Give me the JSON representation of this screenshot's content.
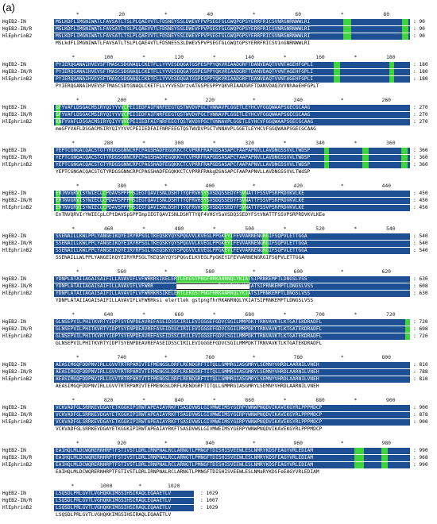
{
  "panel_label": "(a)",
  "ruler_marker": "*",
  "blocks": [
    {
      "ruler": [
        "20",
        "40",
        "60",
        "80"
      ],
      "rows": [
        {
          "name": "HgEB2-IN",
          "seq": "MSLKDFLIMGNIWATLFAVSATLTSLPLQAEVVTLFDSNEYSSLDWEVFPVPSEGTGLGWQPGPSYERRFRICSVNRGNRNWWLRI",
          "count": "90"
        },
        {
          "name": "HgEB2-IN/R",
          "seq": "MSLKDFLIMGNIWATLFAVSATLTSLPLQAEVVTLFDSNEYSSLDWEVFPVPSEGTGLGWQPGPSYERRFRICSVNRGNRNWWLRI",
          "count": "90"
        },
        {
          "name": "HlEphrinB2",
          "seq": "MSLKDFLIMGNIWATLFAVSATLTSLPLQAEVVTLFDSNEYSSLDWEVFPVPSEGTGLGWQPGPSYERRFRICSVNRGNRNWWLRI",
          "count": "90"
        },
        {
          "name": "",
          "seq": "MSLkdFLIMGNIWATLFAVSATLTSLPLQAE4VTLFDSNE5S3LDWEV5PVPSEGTGLGWQtGPSYERRFRICSV1nGNRNWWLRI",
          "count": ""
        }
      ]
    },
    {
      "ruler": [
        "100",
        "120",
        "140",
        "160",
        "180"
      ],
      "rows": [
        {
          "name": "HgEB2-IN",
          "seq": "PYIERQGANAIHVEVSFTMASCSDGNAQLCKETFLLYYVESDQGATGSPESPPYQKVRIAADGRFTDANVDAQTVVNTAGEHFGPLI",
          "count": "180"
        },
        {
          "name": "HgEB2-IN/R",
          "seq": "PYIERQGANAIHVEVSFTMASCSDGNAQLCKETFLLYYVESDQGATGSPESPPYQKVRIAADGRFTDANVDAQTVVNTAGEHFGPLI",
          "count": "180"
        },
        {
          "name": "HlEphrinB2",
          "seq": "PYIERQGANAIHVEVSFTMASCSDGNAQLCKETFLLYYVESDQGATGSPESPPYQKVRIAADGRFTDANVDAQTVVNTAGEHFGPLI",
          "count": "180"
        },
        {
          "name": "",
          "seq": "PYIERQGANAIHVEVSFTMASCSDtGNAQLCKETFLLYYVESDrzvATGSPESPPYQKVRIAADGRFTDANVDAQ3VVNhAeEHFGPLT",
          "count": ""
        }
      ]
    },
    {
      "ruler": [
        "200",
        "220",
        "240",
        "260"
      ],
      "rows": [
        {
          "name": "HgEB2-IN",
          "seq": "GFYVAFLDSGACMSIRYQIYYVVCPEIIEDFAIFNRFEEGTQSTWVDVPGCTVNNAVPLGGETLEYHCVFGGQWAAPSGECGCAAG",
          "count": "270"
        },
        {
          "name": "HgEB2-IN/R",
          "seq": "GFYVAFLDSGACMSIRYQIYYVVCPEIIEDFAIFNRFEEGTQSTWVDVPGCTVNNAVPLGGETLEYHCVFGGQWAAPSGECGCAAG",
          "count": "270"
        },
        {
          "name": "HlEphrinB2",
          "seq": "KNFYVAFLDSGACMSIRYQIYYVVCPEIIEDFAIFNRFEEGTQSTWVDVPGCTVNNAVPLGGETLEYHCVFGGQWAAPSGECGCAAG",
          "count": "270"
        },
        {
          "name": "",
          "seq": "meGFYVAFLDSGACMSIRYQIYYVVCPEIIEDFAIFNRFEEGTQSTWVDVPGCTVNNAVPLGGETLEYHCVFGGQWAAPSGECGCAAG",
          "count": ""
        }
      ]
    },
    {
      "ruler": [
        "280",
        "300",
        "320",
        "340",
        "360"
      ],
      "rows": [
        {
          "name": "HgEB2-IN",
          "seq": "YEPTCGNGACQACSTGTYRDGSGNNCRPCPAGSHADFEGQKKCTCVPRRFRAPGDSASAPCFAAPAPNVLLAVDNGSSVVLTWDSP",
          "count": "360"
        },
        {
          "name": "HgEB2-IN/R",
          "seq": "YEPTCGNGACQACSTGTYRDGSGNNCRPCPAGSHADFEGQKKCTCVPRRFRAPGDSASAPCFAAPAPNVLLAVDNGSSVVLTWDSP",
          "count": "360"
        },
        {
          "name": "HlEphrinB2",
          "seq": "YEPTCGNGACQACSTGTYRDGSGNNCRPCPAGSHADFEGQKKCTCVPRRFRAPGDSASAPCFAAPAPNVLLAVDNGSSVVLTWDSP",
          "count": "360"
        },
        {
          "name": "",
          "seq": "YEPTCGNGACQACSTGTYRDGSGNNCRPCPAGSHADFEGQKKCTCVPRRFRAkgDSASAPCFAAPAPNVLLAVDNGSSVVLTWdSP",
          "count": ""
        }
      ]
    },
    {
      "ruler": [
        "380",
        "400",
        "420",
        "440"
      ],
      "rows": [
        {
          "name": "HgEB2-IN",
          "seq": "ERTNVGRVISYWIECLCPDAVSPPPMSIEGTQAVISNLDSHTTYQFRVHSYSVSDQSSEDYFSVNATTFSSVPSRPRDVKVLKE",
          "count": "450"
        },
        {
          "name": "HgEB2-IN/R",
          "seq": "ERTNVGRVISYWIECLCPDAVSPPPMSIEGTQAVISNLDSHTTYQFRVHSYSVSDQSSEDYFSVNATTFSSVPSRPRDVKVLKE",
          "count": "450"
        },
        {
          "name": "HlEphrinB2",
          "seq": "ERTNVGRVISYWIECLCPDAVSPPPMSIEGTQAVISNLDSHTTYQFRVHSYSVSDQSSEDYFSVNATTFSSVPSRPRDVKVLKE",
          "count": "450"
        },
        {
          "name": "",
          "seq": "EnTNVQRVIrYWIECpLCPtDAVSpSPPImpIEGTQAVISNLDSHTTYQF4VHSYSaVSDQSSEDYFStVNATTFSSVPSRPRDVKVLKEe",
          "count": ""
        }
      ]
    },
    {
      "ruler": [
        "460",
        "480",
        "500",
        "520",
        "540"
      ],
      "rows": [
        {
          "name": "HgEB2-IN",
          "seq": "SSENAILLKWLPPLYANGEIKQYEIRYRPSGLTKEQSKYQYSPQGVVLKVEGLPPGKEYIFEVVARNENGRGIFSQPVLETTGGA",
          "count": "540"
        },
        {
          "name": "HgEB2-IN/R",
          "seq": "SSENAILLKWLPPLYANGEIKQYEIRYRPSGLTKEQSKYQYSPQGVVLKVEGLPPGKEYIFEVVARNENGRGIFSQPVLETTGGA",
          "count": "540"
        },
        {
          "name": "HlEphrinB2",
          "seq": "SSENAILLKWLPPLYANGEIKQYEIRYRPSGLTKEQSKYQYSPQGVVLKVEGLPPGKEYIFEVVARNENGRGIFSQPVLETTGGA",
          "count": "540"
        },
        {
          "name": "",
          "seq": "SSENAILLWLPPLYANGEIKQYEIRYRPSGLTKEQSKYQYSPQGvELKVEGLPpGKEYIFEVVARNENGRGIFSQPVLETTGGA",
          "count": ""
        }
      ]
    },
    {
      "ruler": [
        "560",
        "580",
        "600",
        "620"
      ],
      "rows": [
        {
          "name": "HgEB2-IN",
          "seq": "YDNPLATAIIAGAISAIFILLAVAVIFLVFWRKRSIKELERTLEKGSTPNGFHRKANRNQLYKIATSIPRNKEMPTLDNGSLVSS",
          "count": "630"
        },
        {
          "name": "HgEB2-IN/R",
          "seq": "YDNPLATAIIAGAISAIFILLAVAVIFLVFWRR                      RKANRNQLYKIATSIPRNKEMPTLDNGSLVSS",
          "count": "608"
        },
        {
          "name": "HlEphrinB2",
          "seq": "YDNPLATAIIAGAISAIFILLAVAVIFLVFWRRKRSIKELERTLEKGSTPNGFHRKANRNQLYKIATSIPRNKEMPTLDNGSLVSS",
          "count": "630"
        },
        {
          "name": "",
          "seq": "YDNPLATAIIAGAISAIFILLAVAVIFLVFWRRksi elertlek gstpngfhrRKANRNQLYKIATSIPRNKEMPTLDNGSLVSS",
          "count": ""
        }
      ]
    },
    {
      "ruler": [
        "640",
        "660",
        "680",
        "700",
        "720"
      ],
      "rows": [
        {
          "name": "HgEB2-IN",
          "seq": "GLNSEPVILPHITKVRTYIDPTSYENPDEAVREFASEIDSSCIRILEVIGGGEFGDVCSGILMMPDKTTRNVAVKTLKTGATEKDRADFL",
          "count": "720"
        },
        {
          "name": "HgEB2-IN/R",
          "seq": "GLNSEPVILPHITKVRTYIDPTSYENPDEAVREFASEIDSSCIRILEVIGGGEFGDVCSGILMMPDKTTRNVAVKTLKTGATEKDRADFL",
          "count": "698"
        },
        {
          "name": "HlEphrinB2",
          "seq": "GLNSEPVILPHITKVRTYIDPTSYENPDEAVREFASEIDSSCIRILEVIGGGEFGDVCSGILMMPDKTTRNVAVKTLKTGATEKDRADFL",
          "count": "720"
        },
        {
          "name": "",
          "seq": "GLNSEPVILPHITKVRTYIDPTSYENPDEAVREFASEIDSSCIRILEVIGGGEFGDVCSGILMMPDKTTRNVAVKTLKTGATEKDRADFL",
          "count": ""
        }
      ]
    },
    {
      "ruler": [
        "740",
        "760",
        "780",
        "800"
      ],
      "rows": [
        {
          "name": "HgEB2-IN",
          "seq": "AEASIMGQFDDPNVIRLLGVVTRTRPAMIVTEFMENGSLDRFLRENDGRFTITQLLGMMRGIASGMRYLSEMNYVHRDLAARNILVNEH",
          "count": "810"
        },
        {
          "name": "HgEB2-IN/R",
          "seq": "AEASIMGQFDDPNVIRLLGVVTRTRPAMIVTEFMENGSLDRFLRENDGRFTITQLLGMMRGIASGMRYLSEMNYVHRDLAARNILVNEH",
          "count": "788"
        },
        {
          "name": "HlEphrinB2",
          "seq": "AEASIMGQFDDPNVIRLLGVVTRTRPAMIVTEFMENGSLDRFLRENDGRFTITQLLGMMRGIASGMRYLSEMNYVHRDLAARNILVNEH",
          "count": "810"
        },
        {
          "name": "",
          "seq": "AEASIMGQFDDPNVIRLLGVVTRTRPAMIVTEFMENGSLDRFLRENDGRFTITQLLGMMRGIASGMRYLSEMNYVHRDLAARNILVNEH",
          "count": ""
        }
      ]
    },
    {
      "ruler": [
        "820",
        "840",
        "860",
        "880",
        "900"
      ],
      "rows": [
        {
          "name": "HgEB2-IN",
          "seq": "VCKVADFGLSRRKEVDGAYETKGGKIPIRWTAPEAIAYRKFTSASDVWSLGIVMWEIMSYGERPYWNWPNQDVIKAVEKGYRLPPPMDCP",
          "count": "900"
        },
        {
          "name": "HgEB2-IN/R",
          "seq": "VCKVADFGLSRRKEVDGAYETKGGKIPIRWTAPEAIAYRKFTSASDVWSLGIVMWEIMSYGERPYWNWPNQDVIKAVEKGYRLPPPMDCP",
          "count": "878"
        },
        {
          "name": "HlEphrinB2",
          "seq": "VCKVADFGLSRRKEVDGAYETKGGKIPIRWTAPEAIAYRKFTSASDVWSLGIVMWEIMSYGERPYWNWPNQDVIKAVEKGYRLPPPMDCP",
          "count": "900"
        },
        {
          "name": "",
          "seq": "VCKVADFGLSRRKEVDGAYETKGGKIPIRWTAPEAIAYRKFTSASDVWSLGIVMWEIMSYGERPYWNWPNQDVIKAVEKGYRLPPPMDCP",
          "count": ""
        }
      ]
    },
    {
      "ruler": [
        "920",
        "940",
        "960",
        "980"
      ],
      "rows": [
        {
          "name": "HgEB2-IN",
          "seq": "EAIHQLMLDCWQRERNHRPTFSTIVSTLDRLIRNPNALRCLARNGTLPMNGFTDISHISVEEWLESLNMRYKDSFEAGYVRLEDIAM",
          "count": "990"
        },
        {
          "name": "HgEB2-IN/R",
          "seq": "EAIHQLMLDCWQRERNHRPTFSTIVSTLDRLIRNPNALRCLARNGTLPMNGFTDISHISVEEWLESLNMRYKDSFEAGYVRLEDIAM",
          "count": "968"
        },
        {
          "name": "HlEphrinB2",
          "seq": "EAIHQLMLDCWQRERNHRPTFSTIVSTLDRLIRNPNALRCLARNGTLPMNGFTDISHISVEEWLESLNMRYKDSFEAGYVRLEDIAM",
          "count": "990"
        },
        {
          "name": "",
          "seq": "EAIHQLMLDCWQRERNHRPTFSTIVSTLDRLIRNPNALRCLARNGTLPMNGFTDISHISVEEWLESLNMaRYKDSFeEAGYVRLEDIAM",
          "count": ""
        }
      ]
    },
    {
      "ruler": [
        "1000",
        "1020"
      ],
      "rows": [
        {
          "name": "HgEB2-IN",
          "seq": "LSQSDLPRLGVTLVGHQKKIMGSIHSIRAQLEQAAETLV",
          "count": "1029"
        },
        {
          "name": "HgEB2-IN/R",
          "seq": "LSQSDLPRLGVTLVGHQKKIMGSIHSIRAQLEQAAETLV",
          "count": "1007"
        },
        {
          "name": "HlEphrinB2",
          "seq": "LSQSDLPRLGVTLVGHQKKIMGSIHSIRAQLEQAAETLV",
          "count": "1029"
        },
        {
          "name": "",
          "seq": "LSQSDLPRLGVTLVGHQKKIMGSIHSIRAQLEQAAETLV",
          "count": ""
        }
      ]
    }
  ],
  "colors": {
    "identical": "#1f4f93",
    "similar": "#3fd33f",
    "background": "#ffffff"
  }
}
